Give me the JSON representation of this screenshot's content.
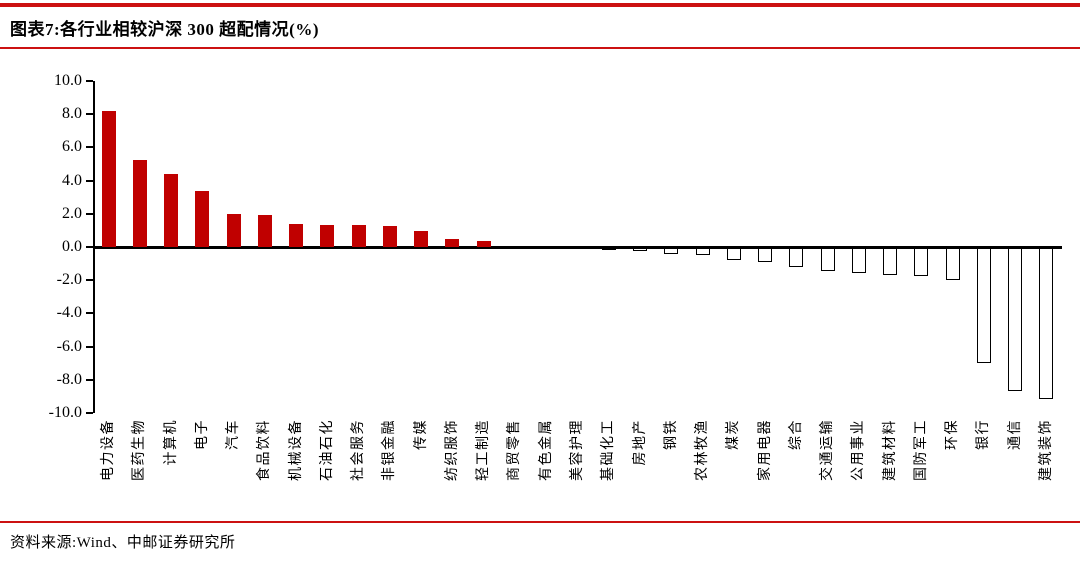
{
  "header": {
    "title": "图表7:各行业相较沪深 300 超配情况(%)"
  },
  "footer": {
    "source": "资料来源:Wind、中邮证券研究所"
  },
  "colors": {
    "bar_positive": "#C00000",
    "bar_negative_fill": "#FFFFFF",
    "bar_negative_border": "#000000",
    "rule_red": "#CC1111",
    "axis": "#000000"
  },
  "chart_data": {
    "type": "bar",
    "title": "各行业相较沪深300超配情况(%)",
    "xlabel": "",
    "ylabel": "",
    "ylim": [
      -10,
      10
    ],
    "ytick_labels": [
      "10.0",
      "8.0",
      "6.0",
      "4.0",
      "2.0",
      "0.0",
      "-2.0",
      "-4.0",
      "-6.0",
      "-8.0",
      "-10.0"
    ],
    "grid": false,
    "legend": false,
    "categories": [
      "电力设备",
      "医药生物",
      "计算机",
      "电子",
      "汽车",
      "食品饮料",
      "机械设备",
      "石油石化",
      "社会服务",
      "非银金融",
      "传媒",
      "纺织服饰",
      "轻工制造",
      "商贸零售",
      "有色金属",
      "美容护理",
      "基础化工",
      "房地产",
      "钢铁",
      "农林牧渔",
      "煤炭",
      "家用电器",
      "综合",
      "交通运输",
      "公用事业",
      "建筑材料",
      "国防军工",
      "环保",
      "银行",
      "通信",
      "建筑装饰"
    ],
    "values": [
      8.2,
      5.25,
      4.4,
      3.4,
      2.0,
      1.9,
      1.4,
      1.3,
      1.3,
      1.25,
      0.95,
      0.5,
      0.35,
      0.0,
      0.0,
      0.0,
      -0.15,
      -0.2,
      -0.35,
      -0.45,
      -0.75,
      -0.85,
      -1.15,
      -1.4,
      -1.5,
      -1.65,
      -1.7,
      -1.9,
      -6.9,
      -8.6,
      -9.1
    ]
  }
}
